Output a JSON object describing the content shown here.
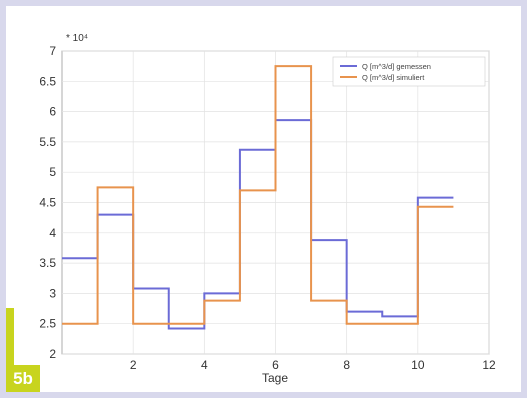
{
  "figure": {
    "badge": "5b"
  },
  "chart_data": {
    "type": "line",
    "step": "post",
    "xlabel": "Tage",
    "ylabel": "",
    "scale_label": "* 10⁴",
    "xlim": [
      0,
      12
    ],
    "ylim": [
      20000,
      70000
    ],
    "xticks": [
      2,
      4,
      6,
      8,
      10,
      12
    ],
    "yticks": [
      20000,
      25000,
      30000,
      35000,
      40000,
      45000,
      50000,
      55000,
      60000,
      65000,
      70000
    ],
    "xtick_labels": [
      "2",
      "4",
      "6",
      "8",
      "10",
      "12"
    ],
    "ytick_labels": [
      "2",
      "2.5",
      "3",
      "3.5",
      "4",
      "4.5",
      "5",
      "5.5",
      "6",
      "6.5",
      "7"
    ],
    "grid": true,
    "legend_position": "top-right",
    "series": [
      {
        "name": "Q [m^3/d] gemessen",
        "color": "#6b6bd6",
        "x": [
          0,
          1,
          2,
          3,
          4,
          5,
          6,
          7,
          8,
          9,
          10,
          11
        ],
        "y": [
          35800,
          43000,
          30800,
          24200,
          30000,
          53700,
          58600,
          38800,
          27000,
          26200,
          45800,
          45800
        ]
      },
      {
        "name": "Q [m^3/d] simuliert",
        "color": "#e8934d",
        "x": [
          0,
          1,
          2,
          3,
          4,
          5,
          6,
          7,
          8,
          9,
          10,
          11
        ],
        "y": [
          25000,
          47500,
          25000,
          25000,
          28800,
          47000,
          67500,
          28800,
          25000,
          25000,
          44300,
          44300
        ]
      }
    ]
  }
}
